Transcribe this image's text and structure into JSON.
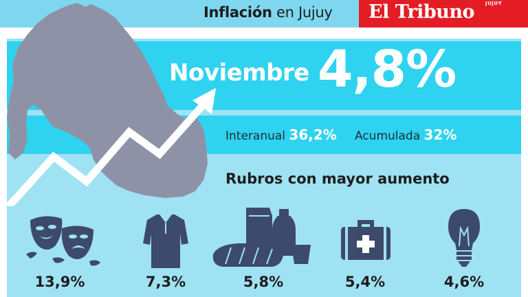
{
  "header": {
    "title_bold": "Inflación",
    "title_rest": " en Jujuy",
    "logo": "El Tribuno",
    "logo_sub": "JUJUY"
  },
  "headline": {
    "month": "Noviembre",
    "value": "4,8%"
  },
  "stats": {
    "interanual_label": "Interanual",
    "interanual_value": "36,2%",
    "acumulada_label": "Acumulada",
    "acumulada_value": "32%"
  },
  "section_title": "Rubros con mayor aumento",
  "categories": [
    {
      "icon": "theater-masks-icon",
      "value": "13,9%"
    },
    {
      "icon": "polo-shirt-icon",
      "value": "7,3%"
    },
    {
      "icon": "food-groceries-icon",
      "value": "5,8%"
    },
    {
      "icon": "first-aid-kit-icon",
      "value": "5,4%"
    },
    {
      "icon": "light-bulb-icon",
      "value": "4,6%"
    }
  ],
  "colors": {
    "topbar": "#7fd7ef",
    "brand_red": "#e41d24",
    "band": "#2fd3ef",
    "panel": "#9fe2f3",
    "map": "#8e92a6",
    "icon": "#3d4a6b"
  }
}
